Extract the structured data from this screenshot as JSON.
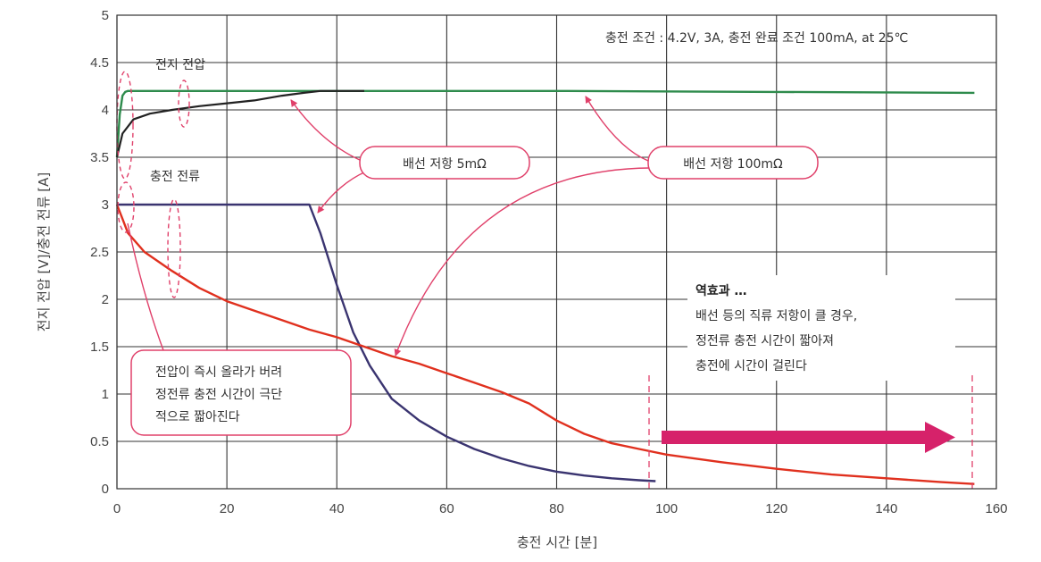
{
  "chart_data": {
    "type": "line",
    "xlabel": "충전 시간 [분]",
    "ylabel": "전지 전압 [V]/충전 전류 [A]",
    "xlim": [
      0,
      160
    ],
    "ylim": [
      0,
      5
    ],
    "x_ticks": [
      "0",
      "20",
      "40",
      "60",
      "80",
      "100",
      "120",
      "140",
      "160"
    ],
    "y_ticks": [
      "0",
      "0.5",
      "1",
      "1.5",
      "2",
      "2.5",
      "3",
      "3.5",
      "4",
      "4.5",
      "5"
    ],
    "grid": true,
    "conditions": "충전 조건 : 4.2V, 3A, 충전 완료 조건 100mA, at 25℃",
    "series": [
      {
        "name": "",
        "color": "#2e8b4c",
        "x": [
          0,
          0.5,
          1,
          1.5,
          2,
          3,
          10,
          40,
          80,
          120,
          156
        ],
        "y": [
          3.5,
          3.95,
          4.15,
          4.19,
          4.2,
          4.2,
          4.2,
          4.2,
          4.2,
          4.19,
          4.18
        ]
      },
      {
        "name": "",
        "color": "#222222",
        "x": [
          0,
          1,
          3,
          6,
          10,
          15,
          20,
          25,
          30,
          34,
          37,
          40,
          45
        ],
        "y": [
          3.5,
          3.75,
          3.9,
          3.96,
          4.0,
          4.04,
          4.07,
          4.1,
          4.15,
          4.18,
          4.2,
          4.2,
          4.2
        ]
      },
      {
        "name": "",
        "color": "#3a3470",
        "x": [
          0,
          2,
          10,
          20,
          30,
          35,
          37,
          40,
          43,
          46,
          50,
          55,
          60,
          65,
          70,
          75,
          80,
          85,
          90,
          95,
          98
        ],
        "y": [
          3.0,
          3.0,
          3.0,
          3.0,
          3.0,
          3.0,
          2.7,
          2.15,
          1.65,
          1.3,
          0.95,
          0.72,
          0.55,
          0.42,
          0.32,
          0.24,
          0.18,
          0.14,
          0.11,
          0.09,
          0.08
        ]
      },
      {
        "name": "",
        "color": "#e0301e",
        "x": [
          0,
          1,
          2,
          5,
          10,
          15,
          20,
          25,
          30,
          35,
          40,
          45,
          50,
          55,
          60,
          65,
          70,
          75,
          80,
          85,
          90,
          95,
          100,
          110,
          120,
          130,
          140,
          150,
          156
        ],
        "y": [
          3.0,
          2.85,
          2.7,
          2.5,
          2.3,
          2.12,
          1.98,
          1.88,
          1.78,
          1.68,
          1.6,
          1.5,
          1.4,
          1.32,
          1.22,
          1.12,
          1.02,
          0.9,
          0.72,
          0.58,
          0.48,
          0.42,
          0.36,
          0.28,
          0.21,
          0.15,
          0.11,
          0.07,
          0.05
        ]
      }
    ],
    "annotations": {
      "battery_voltage": "전지 전압",
      "charge_current": "충전 전류",
      "wire_5m": "배선 저항 5mΩ",
      "wire_100m": "배선 저항 100mΩ",
      "note_left": [
        "전압이 즉시 올라가 버려",
        "정전류 충전 시간이 극단",
        "적으로 짧아진다"
      ],
      "note_right_title": "역효과 …",
      "note_right": [
        "배선 등의 직류 저항이 클 경우,",
        "정전류 충전 시간이 짧아져",
        "충전에 시간이 걸린다"
      ]
    }
  }
}
